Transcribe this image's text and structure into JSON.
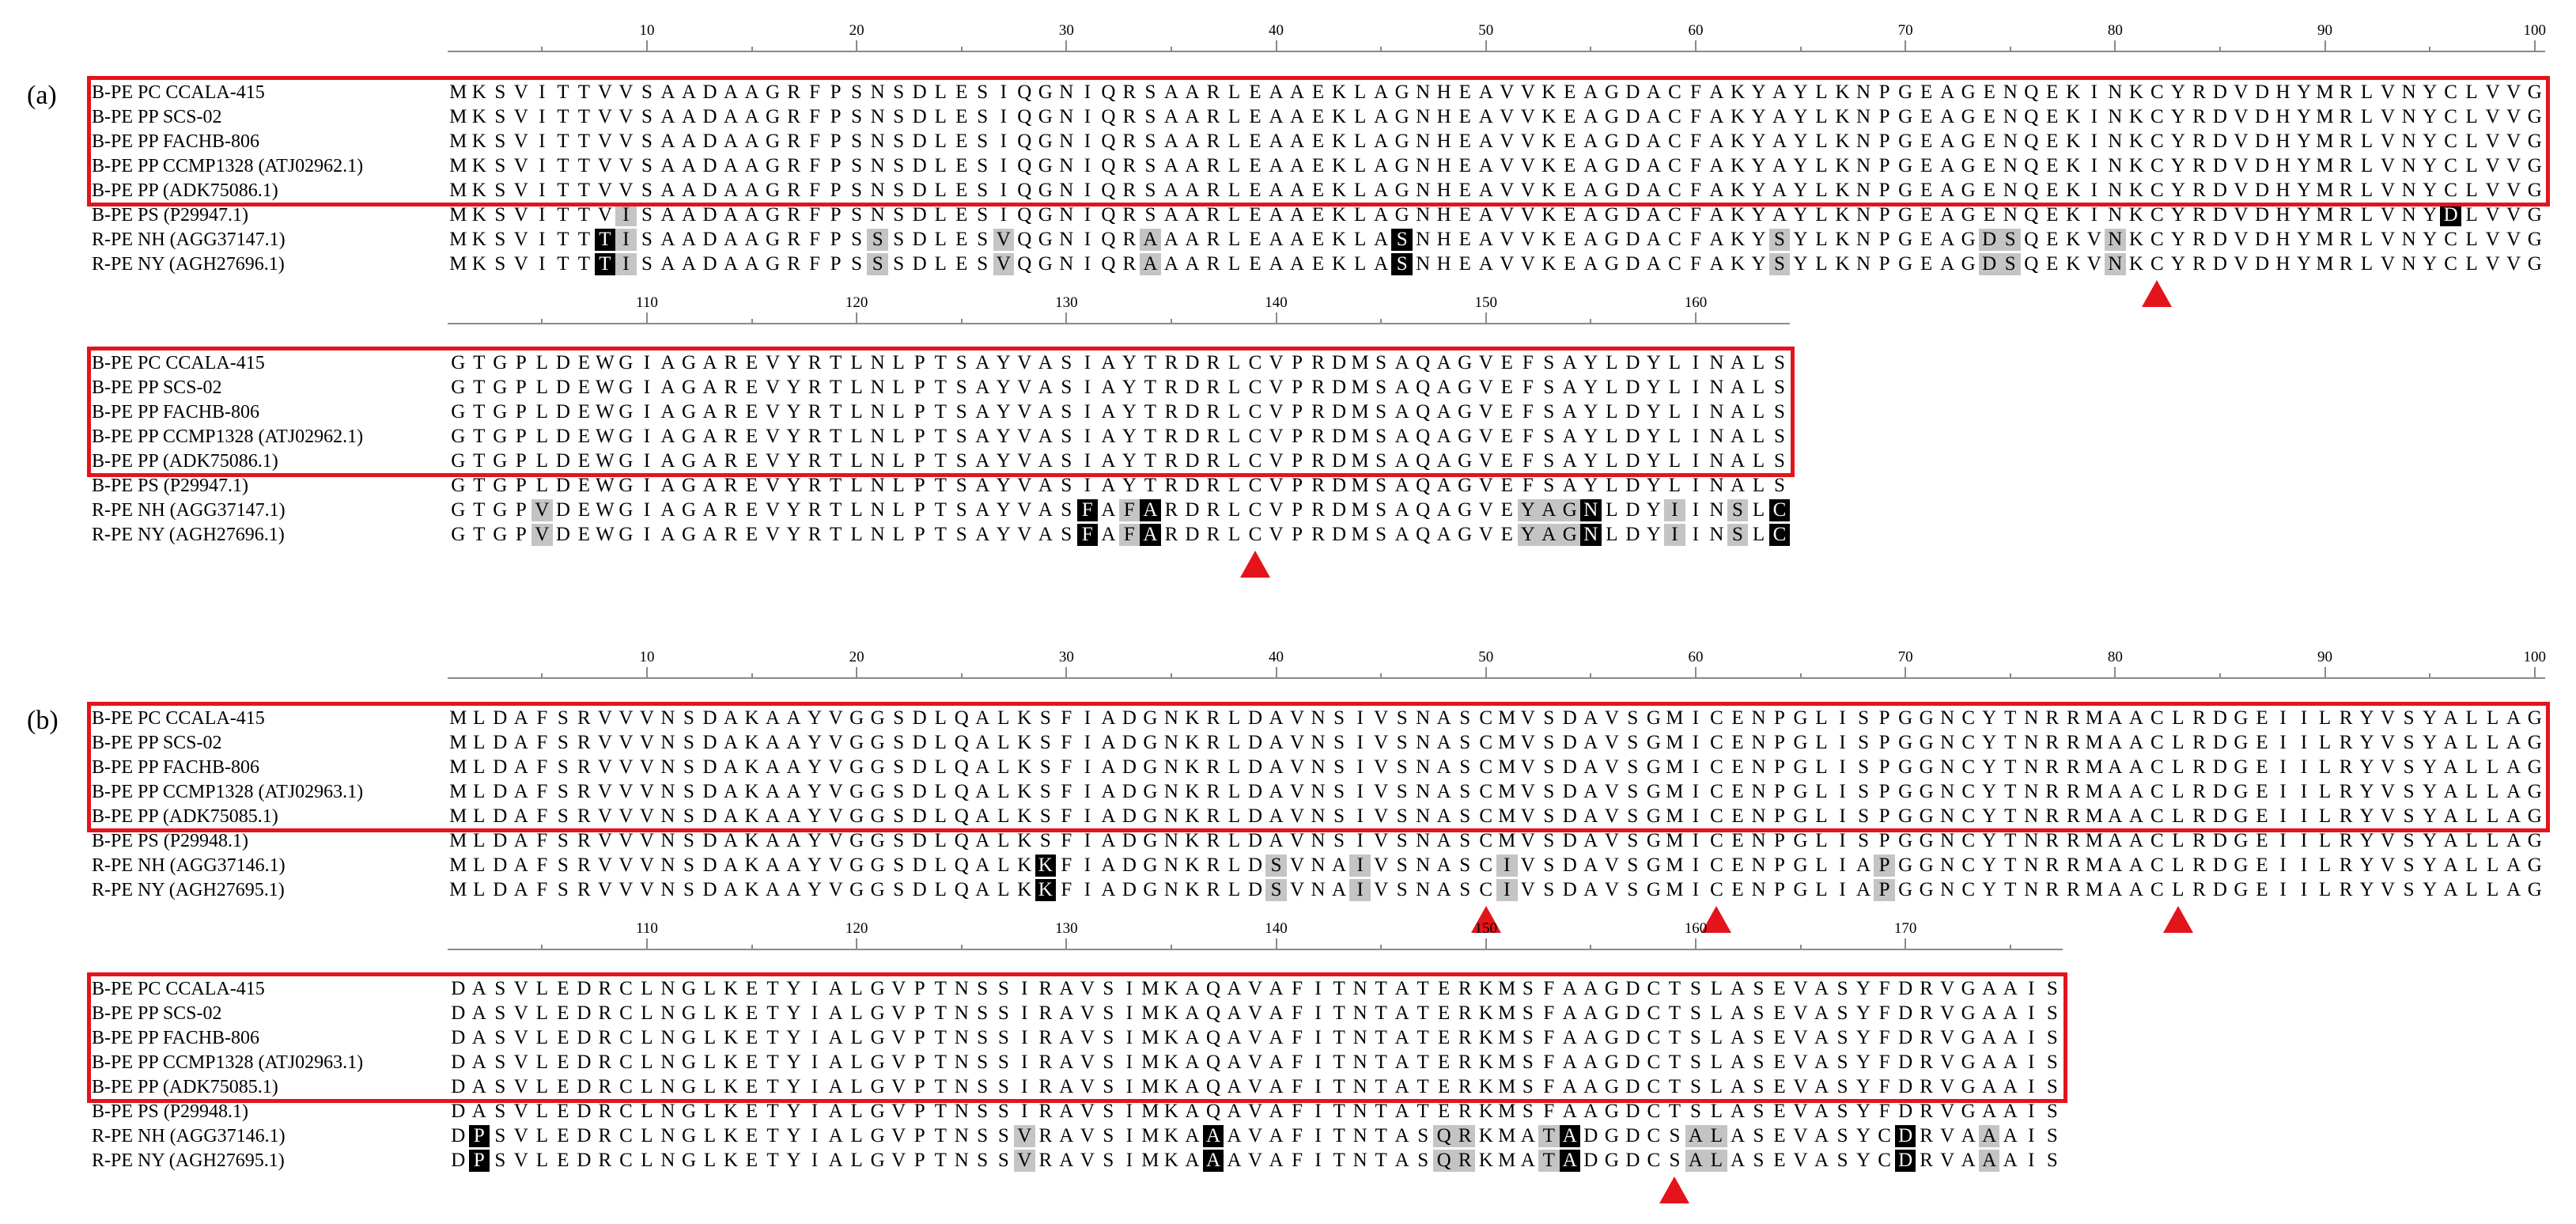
{
  "panels": [
    {
      "label": "(a)",
      "blocks": [
        {
          "start": 1,
          "length": 100,
          "tick_labels": [
            "10",
            "20",
            "30",
            "40",
            "50",
            "60",
            "70",
            "80",
            "90",
            "100"
          ],
          "highlighted_rows": 5,
          "rows": [
            {
              "name": "B-PE PC CCALA-415",
              "seq": "MKSVITTVVSAADAAGRFPSNSDLESIQGNIQRSAARLEAAEKLAGNHEAVVKEAGDACFAKYAYLKNPGEAGENQEKINKCYRDVDHYMRLVNYCLVVG",
              "dark": [],
              "gray": []
            },
            {
              "name": "B-PE PP SCS-02",
              "seq": "MKSVITTVVSAADAAGRFPSNSDLESIQGNIQRSAARLEAAEKLAGNHEAVVKEAGDACFAKYAYLKNPGEAGENQEKINKCYRDVDHYMRLVNYCLVVG",
              "dark": [],
              "gray": []
            },
            {
              "name": "B-PE PP FACHB-806",
              "seq": "MKSVITTVVSAADAAGRFPSNSDLESIQGNIQRSAARLEAAEKLAGNHEAVVKEAGDACFAKYAYLKNPGEAGENQEKINKCYRDVDHYMRLVNYCLVVG",
              "dark": [],
              "gray": []
            },
            {
              "name": "B-PE PP CCMP1328 (ATJ02962.1)",
              "seq": "MKSVITTVVSAADAAGRFPSNSDLESIQGNIQRSAARLEAAEKLAGNHEAVVKEAGDACFAKYAYLKNPGEAGENQEKINKCYRDVDHYMRLVNYCLVVG",
              "dark": [],
              "gray": []
            },
            {
              "name": "B-PE PP (ADK75086.1)",
              "seq": "MKSVITTVVSAADAAGRFPSNSDLESIQGNIQRSAARLEAAEKLAGNHEAVVKEAGDACFAKYAYLKNPGEAGENQEKINKCYRDVDHYMRLVNYCLVVG",
              "dark": [],
              "gray": []
            },
            {
              "name": "B-PE PS (P29947.1)",
              "seq": "MKSVITTVISAADAAGRFPSNSDLESIQGNIQRSAARLEAAEKLAGNHEAVVKEAGDACFAKYAYLKNPGEAGENQEKINKCYRDVDHYMRLVNYDLVVG",
              "dark": [
                96
              ],
              "gray": [
                9
              ]
            },
            {
              "name": "R-PE NH (AGG37147.1)",
              "seq": "MKSVITTTISAADAAGRFPSSSDLESVQGNIQRAAARLEAAEKLASNHEAVVKEAGDACFAKYSYLKNPGEAGDSQEKVNKCYRDVDHYMRLVNYCLVVG",
              "dark": [
                8
              ],
              "gray": [
                9,
                21,
                27,
                34,
                64,
                74,
                75,
                80
              ],
              "dark2": [
                46
              ]
            },
            {
              "name": "R-PE NY (AGH27696.1)",
              "seq": "MKSVITTTISAADAAGRFPSSSDLESVQGNIQRAAARLEAAEKLASNHEAVVKEAGDACFAKYSYLKNPGEAGDSQEKVNKCYRDVDHYMRLVNYCLVVG",
              "dark": [
                8
              ],
              "gray": [
                9,
                21,
                27,
                34,
                64,
                74,
                75,
                80
              ],
              "dark2": [
                46
              ]
            }
          ],
          "markers": [
            82
          ]
        },
        {
          "start": 101,
          "length": 64,
          "tick_labels": [
            "110",
            "120",
            "130",
            "140",
            "150",
            "160"
          ],
          "highlighted_rows": 5,
          "rows": [
            {
              "name": "B-PE PC CCALA-415",
              "seq": "GTGPLDEWGIAGAREVYRTLNLPTSAYVASIAYTRDRLCVPRDMSAQAGVEFSAYLDYLINALS",
              "dark": [],
              "gray": []
            },
            {
              "name": "B-PE PP SCS-02",
              "seq": "GTGPLDEWGIAGAREVYRTLNLPTSAYVASIAYTRDRLCVPRDMSAQAGVEFSAYLDYLINALS",
              "dark": [],
              "gray": []
            },
            {
              "name": "B-PE PP FACHB-806",
              "seq": "GTGPLDEWGIAGAREVYRTLNLPTSAYVASIAYTRDRLCVPRDMSAQAGVEFSAYLDYLINALS",
              "dark": [],
              "gray": []
            },
            {
              "name": "B-PE PP CCMP1328 (ATJ02962.1)",
              "seq": "GTGPLDEWGIAGAREVYRTLNLPTSAYVASIAYTRDRLCVPRDMSAQAGVEFSAYLDYLINALS",
              "dark": [],
              "gray": []
            },
            {
              "name": "B-PE PP (ADK75086.1)",
              "seq": "GTGPLDEWGIAGAREVYRTLNLPTSAYVASIAYTRDRLCVPRDMSAQAGVEFSAYLDYLINALS",
              "dark": [],
              "gray": []
            },
            {
              "name": "B-PE PS (P29947.1)",
              "seq": "GTGPLDEWGIAGAREVYRTLNLPTSAYVASIAYTRDRLCVPRDMSAQAGVEFSAYLDYLINALS",
              "dark": [],
              "gray": []
            },
            {
              "name": "R-PE NH (AGG37147.1)",
              "seq": "GTGPVDEWGIAGAREVYRTLNLPTSAYVASFAFARDRLCVPRDMSAQAGVEYAGNLDYIINSLC",
              "dark": [
                131,
                134,
                155,
                164
              ],
              "gray": [
                105,
                133,
                152,
                153,
                154,
                159,
                162
              ]
            },
            {
              "name": "R-PE NY (AGH27696.1)",
              "seq": "GTGPVDEWGIAGAREVYRTLNLPTSAYVASFAFARDRLCVPRDMSAQAGVEYAGNLDYIINSLC",
              "dark": [
                131,
                134,
                155,
                164
              ],
              "gray": [
                105,
                133,
                152,
                153,
                154,
                159,
                162
              ]
            }
          ],
          "markers": [
            139
          ]
        }
      ]
    },
    {
      "label": "(b)",
      "blocks": [
        {
          "start": 1,
          "length": 100,
          "tick_labels": [
            "10",
            "20",
            "30",
            "40",
            "50",
            "60",
            "70",
            "80",
            "90",
            "100"
          ],
          "highlighted_rows": 5,
          "rows": [
            {
              "name": "B-PE PC CCALA-415",
              "seq": "MLDAFSRVVVNSDAKAAYVGGSDLQALKSFIADGNKRLDAVNSIVSNASCMVSDAVSGMICENPGLISPGGNCYTNRRMAACLRDGEIILRYVSYALLAG",
              "dark": [],
              "gray": []
            },
            {
              "name": "B-PE PP SCS-02",
              "seq": "MLDAFSRVVVNSDAKAAYVGGSDLQALKSFIADGNKRLDAVNSIVSNASCMVSDAVSGMICENPGLISPGGNCYTNRRMAACLRDGEIILRYVSYALLAG",
              "dark": [],
              "gray": []
            },
            {
              "name": "B-PE PP FACHB-806",
              "seq": "MLDAFSRVVVNSDAKAAYVGGSDLQALKSFIADGNKRLDAVNSIVSNASCMVSDAVSGMICENPGLISPGGNCYTNRRMAACLRDGEIILRYVSYALLAG",
              "dark": [],
              "gray": []
            },
            {
              "name": "B-PE PP CCMP1328 (ATJ02963.1)",
              "seq": "MLDAFSRVVVNSDAKAAYVGGSDLQALKSFIADGNKRLDAVNSIVSNASCMVSDAVSGMICENPGLISPGGNCYTNRRMAACLRDGEIILRYVSYALLAG",
              "dark": [],
              "gray": []
            },
            {
              "name": "B-PE PP (ADK75085.1)",
              "seq": "MLDAFSRVVVNSDAKAAYVGGSDLQALKSFIADGNKRLDAVNSIVSNASCMVSDAVSGMICENPGLISPGGNCYTNRRMAACLRDGEIILRYVSYALLAG",
              "dark": [],
              "gray": []
            },
            {
              "name": "B-PE PS (P29948.1)",
              "seq": "MLDAFSRVVVNSDAKAAYVGGSDLQALKSFIADGNKRLDAVNSIVSNASCMVSDAVSGMICENPGLISPGGNCYTNRRMAACLRDGEIILRYVSYALLAG",
              "dark": [],
              "gray": []
            },
            {
              "name": "R-PE NH (AGG37146.1)",
              "seq": "MLDAFSRVVVNSDAKAAYVGGSDLQALKKFIADGNKRLDSVNAIVSNASCIVSDAVSGMICENPGLIAPGGNCYTNRRMAACLRDGEIILRYVSYALLAG",
              "dark": [
                29
              ],
              "gray": [
                40,
                44,
                51,
                69
              ]
            },
            {
              "name": "R-PE NY (AGH27695.1)",
              "seq": "MLDAFSRVVVNSDAKAAYVGGSDLQALKKFIADGNKRLDSVNAIVSNASCIVSDAVSGMICENPGLIAPGGNCYTNRRMAACLRDGEIILRYVSYALLAG",
              "dark": [
                29
              ],
              "gray": [
                40,
                44,
                51,
                69
              ]
            }
          ],
          "markers": [
            50,
            61,
            83
          ]
        },
        {
          "start": 101,
          "length": 77,
          "tick_labels": [
            "110",
            "120",
            "130",
            "140",
            "150",
            "160",
            "170"
          ],
          "highlighted_rows": 5,
          "rows": [
            {
              "name": "B-PE PC CCALA-415",
              "seq": "DASVLEDRCLNGLKETYIALGVPTNSSIRAVSIMKAQAVAFITNTATERKMSFAAGDCTSLASEVASYFDRVGAAIS",
              "dark": [],
              "gray": []
            },
            {
              "name": "B-PE PP SCS-02",
              "seq": "DASVLEDRCLNGLKETYIALGVPTNSSIRAVSIMKAQAVAFITNTATERKMSFAAGDCTSLASEVASYFDRVGAAIS",
              "dark": [],
              "gray": []
            },
            {
              "name": "B-PE PP FACHB-806",
              "seq": "DASVLEDRCLNGLKETYIALGVPTNSSIRAVSIMKAQAVAFITNTATERKMSFAAGDCTSLASEVASYFDRVGAAIS",
              "dark": [],
              "gray": []
            },
            {
              "name": "B-PE PP CCMP1328 (ATJ02963.1)",
              "seq": "DASVLEDRCLNGLKETYIALGVPTNSSIRAVSIMKAQAVAFITNTATERKMSFAAGDCTSLASEVASYFDRVGAAIS",
              "dark": [],
              "gray": []
            },
            {
              "name": "B-PE PP (ADK75085.1)",
              "seq": "DASVLEDRCLNGLKETYIALGVPTNSSIRAVSIMKAQAVAFITNTATERKMSFAAGDCTSLASEVASYFDRVGAAIS",
              "dark": [],
              "gray": []
            },
            {
              "name": "B-PE PS (P29948.1)",
              "seq": "DASVLEDRCLNGLKETYIALGVPTNSSIRAVSIMKAQAVAFITNTATERKMSFAAGDCTSLASEVASYFDRVGAAIS",
              "dark": [],
              "gray": []
            },
            {
              "name": "R-PE NH (AGG37146.1)",
              "seq": "DPSVLEDRCLNGLKETYIALGVPTNSSVRAVSIMKAAAVAFITNTASQRKMATADGDCSALASEVASYCDRVAAAIS",
              "dark": [
                102,
                137,
                154,
                170
              ],
              "gray": [
                128,
                148,
                149,
                153,
                160,
                161,
                174
              ]
            },
            {
              "name": "R-PE NY (AGH27695.1)",
              "seq": "DPSVLEDRCLNGLKETYIALGVPTNSSVRAVSIMKAAAVAFITNTASQRKMATADGDCSALASEVASYCDRVAAAIS",
              "dark": [
                102,
                137,
                154,
                170
              ],
              "gray": [
                128,
                148,
                149,
                153,
                160,
                161,
                174
              ]
            }
          ],
          "markers": [
            159
          ]
        }
      ]
    }
  ]
}
